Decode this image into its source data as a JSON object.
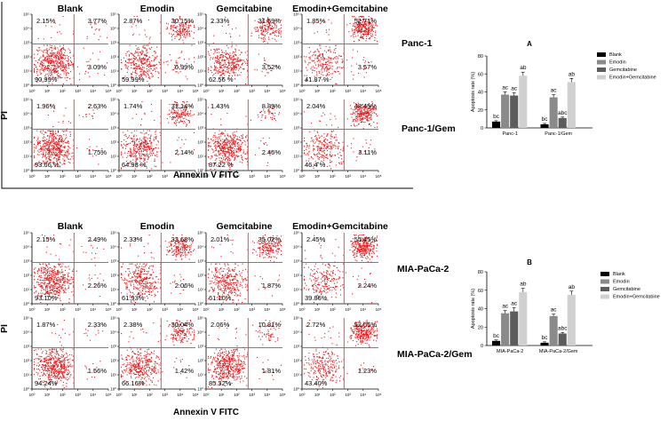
{
  "figure": {
    "y_label": "PI",
    "x_label": "Annexin V FITC",
    "columns": [
      "Blank",
      "Emodin",
      "Gemcitabine",
      "Emodin+Gemcitabine"
    ],
    "tick_labels": [
      "10⁰",
      "10¹",
      "10²",
      "10³",
      "10⁴",
      "10⁵"
    ],
    "colors": {
      "dot": "#e8191c",
      "gate": "#e23a3a",
      "axis": "#000000"
    }
  },
  "panels": [
    {
      "id": "A",
      "rows": [
        {
          "label": "Panc-1",
          "cells": [
            {
              "ul": "2.15%",
              "ur": "3.77%",
              "ll": "90.99%",
              "lr": "3.09%"
            },
            {
              "ul": "2.87%",
              "ur": "30.15%",
              "ll": "59.99%",
              "lr": "6.99%"
            },
            {
              "ul": "2.33%",
              "ur": "31.59%",
              "ll": "62.56 %",
              "lr": "3.52%"
            },
            {
              "ul": "1.85%",
              "ur": "52.71%",
              "ll": "41.87 %",
              "lr": "3.57%"
            }
          ]
        },
        {
          "label": "Panc-1/Gem",
          "cells": [
            {
              "ul": "1.96%",
              "ur": "2.63%",
              "ll": "93.66 %",
              "lr": "1.75%"
            },
            {
              "ul": "1.74%",
              "ur": "31.14%",
              "ll": "64.98 %",
              "lr": "2.14%"
            },
            {
              "ul": "1.43%",
              "ur": "8.89%",
              "ll": "87.22 %",
              "lr": "2.46%"
            },
            {
              "ul": "2.04%",
              "ur": "48.45%",
              "ll": "46.4 %",
              "lr": "3.11%"
            }
          ]
        }
      ]
    },
    {
      "id": "B",
      "rows": [
        {
          "label": "MIA-PaCa-2",
          "cells": [
            {
              "ul": "2.15%",
              "ur": "2.49%",
              "ll": "93.10%",
              "lr": "2.26%"
            },
            {
              "ul": "2.33%",
              "ur": "33.68%",
              "ll": "61.93%",
              "lr": "2.06%"
            },
            {
              "ul": "2.01%",
              "ur": "35.02%",
              "ll": "61.10%",
              "lr": "1.87%"
            },
            {
              "ul": "2.45%",
              "ur": "55.45%",
              "ll": "39.86%",
              "lr": "2.24%"
            }
          ]
        },
        {
          "label": "MIA-PaCa-2/Gem",
          "cells": [
            {
              "ul": "1.87%",
              "ur": "2.33%",
              "ll": "94.24%",
              "lr": "1.56%"
            },
            {
              "ul": "2.38%",
              "ur": "30.04%",
              "ll": "66.16%",
              "lr": "1.42%"
            },
            {
              "ul": "2.06%",
              "ur": "10.81%",
              "ll": "85.32%",
              "lr": "1.81%"
            },
            {
              "ul": "2.72%",
              "ur": "52.65%",
              "ll": "43.40%",
              "lr": "1.23%"
            }
          ]
        }
      ]
    }
  ],
  "chart_data": [
    {
      "type": "bar",
      "panel": "A",
      "title": "A",
      "ylabel": "Apoptosis rate (%)",
      "xlabel": "",
      "ylim": [
        0,
        80
      ],
      "yticks": [
        0,
        20,
        40,
        60,
        80
      ],
      "categories": [
        "Panc-1",
        "Panc-1/Gem"
      ],
      "series": [
        {
          "name": "Blank",
          "color": "#000000",
          "values": [
            7,
            4
          ],
          "errors": [
            1,
            1
          ],
          "labels": [
            "bc",
            "bc"
          ]
        },
        {
          "name": "Emodin",
          "color": "#8a8a8a",
          "values": [
            37,
            34
          ],
          "errors": [
            3,
            3
          ],
          "labels": [
            "ac",
            "ac"
          ]
        },
        {
          "name": "Gemcitabine",
          "color": "#5c5c5c",
          "values": [
            36,
            11
          ],
          "errors": [
            3,
            1
          ],
          "labels": [
            "ac",
            "abc"
          ]
        },
        {
          "name": "Emodin+Gemcitabine",
          "color": "#d0d0d0",
          "values": [
            58,
            51
          ],
          "errors": [
            4,
            4
          ],
          "labels": [
            "ab",
            "ab"
          ]
        }
      ]
    },
    {
      "type": "bar",
      "panel": "B",
      "title": "B",
      "ylabel": "Apoptosis rate (%)",
      "xlabel": "",
      "ylim": [
        0,
        80
      ],
      "yticks": [
        0,
        20,
        40,
        60,
        80
      ],
      "categories": [
        "MIA-PaCa-2",
        "MIA-PaCa-2/Gem"
      ],
      "series": [
        {
          "name": "Blank",
          "color": "#000000",
          "values": [
            5,
            3
          ],
          "errors": [
            1,
            1
          ],
          "labels": [
            "bc",
            "bc"
          ]
        },
        {
          "name": "Emodin",
          "color": "#8a8a8a",
          "values": [
            35,
            32
          ],
          "errors": [
            3,
            2
          ],
          "labels": [
            "ac",
            "ac"
          ]
        },
        {
          "name": "Gemcitabine",
          "color": "#5c5c5c",
          "values": [
            37,
            13
          ],
          "errors": [
            4,
            1
          ],
          "labels": [
            "ac",
            "abc"
          ]
        },
        {
          "name": "Emodin+Gemcitabine",
          "color": "#d0d0d0",
          "values": [
            58,
            55
          ],
          "errors": [
            4,
            4
          ],
          "labels": [
            "ab",
            "ab"
          ]
        }
      ]
    }
  ]
}
